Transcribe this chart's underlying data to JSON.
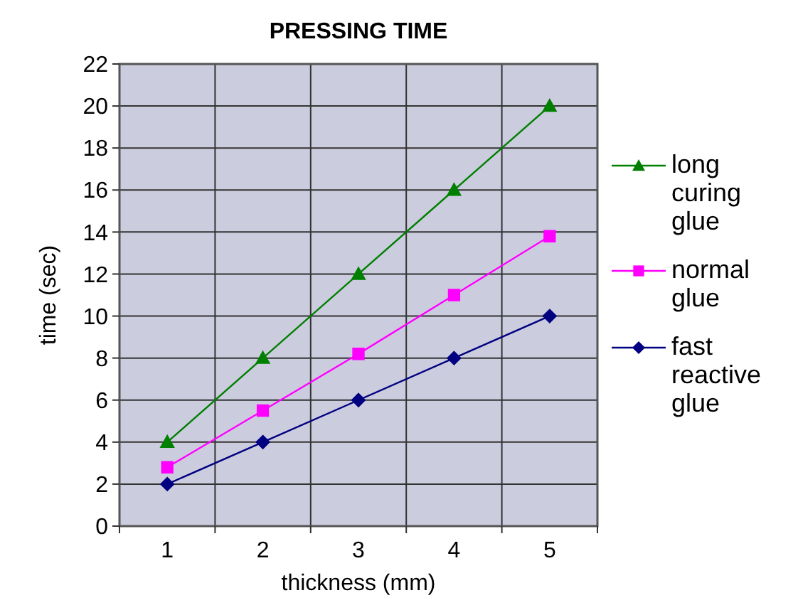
{
  "chart_data": {
    "type": "line",
    "title": "PRESSING TIME",
    "xlabel": "thickness (mm)",
    "ylabel": "time (sec)",
    "categories": [
      "1",
      "2",
      "3",
      "4",
      "5"
    ],
    "ylim": [
      0,
      22
    ],
    "yticks": [
      0,
      2,
      4,
      6,
      8,
      10,
      12,
      14,
      16,
      18,
      20,
      22
    ],
    "grid": true,
    "legend": "right",
    "line_style": "solid",
    "series": [
      {
        "name": "long curing glue",
        "color": "#008000",
        "marker": "triangle",
        "values": [
          4,
          8,
          12,
          16,
          20
        ]
      },
      {
        "name": "normal glue",
        "color": "#ff00ff",
        "marker": "square",
        "values": [
          2.8,
          5.5,
          8.2,
          11,
          13.8
        ]
      },
      {
        "name": "fast reactive glue",
        "color": "#000080",
        "marker": "diamond",
        "values": [
          2,
          4,
          6,
          8,
          10
        ]
      }
    ]
  }
}
